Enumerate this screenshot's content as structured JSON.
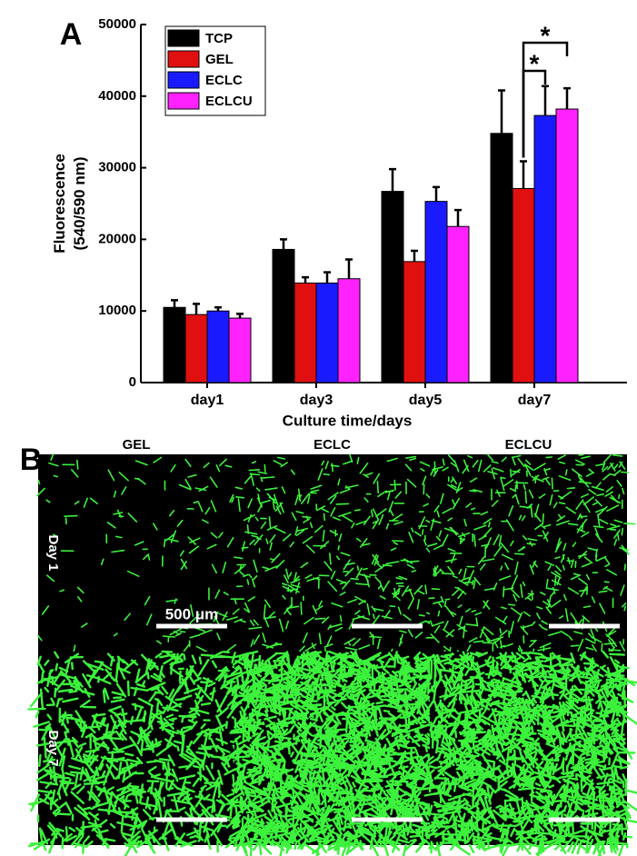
{
  "chart_data": {
    "type": "bar",
    "y_label": [
      "Fluorescence",
      "(540/590 nm)"
    ],
    "x_label": "Culture time/days",
    "categories": [
      "day1",
      "day3",
      "day5",
      "day7"
    ],
    "series": [
      {
        "name": "TCP",
        "color": "#000000",
        "values": [
          10500,
          18600,
          26700,
          34800
        ],
        "errors": [
          1000,
          1400,
          3100,
          6000
        ]
      },
      {
        "name": "GEL",
        "color": "#e01010",
        "values": [
          9500,
          13900,
          16900,
          27100
        ],
        "errors": [
          1500,
          800,
          1500,
          3800
        ]
      },
      {
        "name": "ECLC",
        "color": "#1a1aff",
        "values": [
          10000,
          13900,
          25300,
          37300
        ],
        "errors": [
          500,
          1500,
          2000,
          4100
        ]
      },
      {
        "name": "ECLCU",
        "color": "#ff22ff",
        "values": [
          9000,
          14500,
          21800,
          38200
        ],
        "errors": [
          600,
          2700,
          2300,
          2900
        ]
      }
    ],
    "ylim": [
      0,
      50000
    ],
    "yticks": [
      0,
      10000,
      20000,
      30000,
      40000,
      50000
    ],
    "legend": "upper-left",
    "annotations": [
      "*",
      "*"
    ]
  },
  "panel_labels": [
    "A",
    "B"
  ],
  "micrographs": {
    "columns": [
      "GEL",
      "ECLC",
      "ECLCU"
    ],
    "rows": [
      "Day 1",
      "Day 7"
    ],
    "scale_label": "500 μm"
  }
}
